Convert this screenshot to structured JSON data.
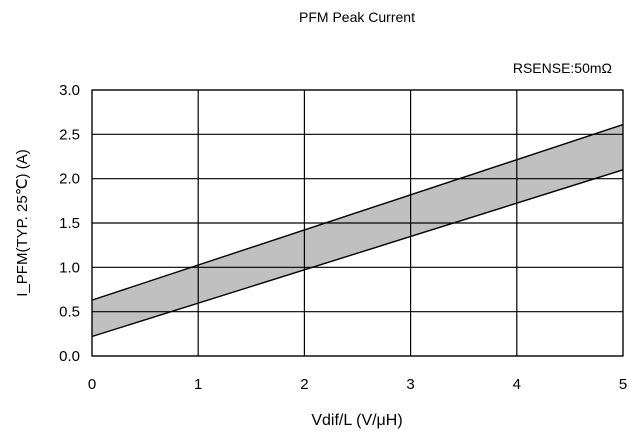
{
  "chart_data": {
    "type": "area",
    "title": "PFM Peak Current",
    "annotation": "RSENSE:50mΩ",
    "xlabel": "Vdif/L (V/μH)",
    "ylabel": "I_PFM(TYP. 25℃) (A)",
    "xlim": [
      0,
      5
    ],
    "ylim": [
      0,
      3
    ],
    "x_ticks": [
      "0",
      "1",
      "2",
      "3",
      "4",
      "5"
    ],
    "y_ticks": [
      "0.0",
      "0.5",
      "1.0",
      "1.5",
      "2.0",
      "2.5",
      "3.0"
    ],
    "grid": true,
    "band_fill_color": "#c0c0c0",
    "series": [
      {
        "x": [
          0,
          5
        ],
        "values": [
          0.63,
          2.61
        ]
      },
      {
        "x": [
          0,
          5
        ],
        "values": [
          0.22,
          2.1
        ]
      }
    ]
  }
}
